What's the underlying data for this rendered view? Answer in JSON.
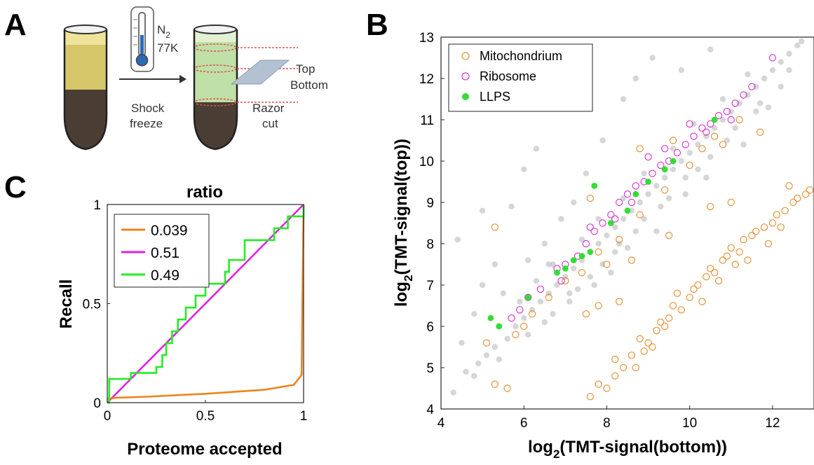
{
  "panel_labels": {
    "a": "A",
    "b": "B",
    "c": "C"
  },
  "schematic": {
    "gas": "N",
    "gas_sub": "2",
    "temp": "77K",
    "step1_line1": "Shock",
    "step1_line2": "freeze",
    "step2_line1": "Razor",
    "step2_line2": "cut",
    "label_top": "Top",
    "label_bottom": "Bottom"
  },
  "chart_data": [
    {
      "type": "line",
      "title": "ratio",
      "xlabel": "Proteome accepted",
      "ylabel": "Recall",
      "xlim": [
        0,
        1
      ],
      "ylim": [
        0,
        1
      ],
      "xticks": [
        "0",
        "0.5",
        "1"
      ],
      "yticks": [
        "0",
        "0.5",
        "1"
      ],
      "legend_position": "top-left",
      "series": [
        {
          "name": "0.039",
          "color": "#f0821e",
          "x": [
            0,
            0.05,
            0.2,
            0.5,
            0.8,
            0.95,
            0.99,
            0.995,
            1.0,
            1.0
          ],
          "y": [
            0.02,
            0.025,
            0.03,
            0.045,
            0.065,
            0.09,
            0.14,
            0.6,
            0.97,
            1.0
          ]
        },
        {
          "name": "0.51",
          "color": "#e020e0",
          "x": [
            0,
            1
          ],
          "y": [
            0,
            1
          ]
        },
        {
          "name": "0.49",
          "color": "#22ee22",
          "step": true,
          "x": [
            0,
            0.01,
            0.12,
            0.25,
            0.28,
            0.3,
            0.33,
            0.36,
            0.4,
            0.45,
            0.5,
            0.55,
            0.6,
            0.62,
            0.66,
            0.7,
            0.75,
            0.8,
            0.85,
            0.88,
            0.92,
            0.95,
            1.0
          ],
          "y": [
            0.0,
            0.12,
            0.15,
            0.18,
            0.24,
            0.3,
            0.36,
            0.42,
            0.48,
            0.54,
            0.6,
            0.6,
            0.66,
            0.72,
            0.72,
            0.82,
            0.82,
            0.82,
            0.88,
            0.88,
            0.94,
            0.94,
            1.0
          ]
        }
      ]
    },
    {
      "type": "scatter",
      "xlabel": "log",
      "xlabel_sub": "2",
      "xlabel_rest": "(TMT-signal(bottom))",
      "ylabel": "log",
      "ylabel_sub": "2",
      "ylabel_rest": "(TMT-signal(top))",
      "xlim": [
        4,
        13
      ],
      "ylim": [
        4,
        13
      ],
      "xticks": [
        "4",
        "6",
        "8",
        "10",
        "12"
      ],
      "yticks": [
        "4",
        "5",
        "6",
        "7",
        "8",
        "9",
        "10",
        "11",
        "12",
        "13"
      ],
      "legend_position": "top-left",
      "series": [
        {
          "name": "Mitochondrium",
          "marker": "open-circle",
          "color": "#e8913a",
          "points": [
            [
              5.3,
              4.6
            ],
            [
              5.6,
              4.5
            ],
            [
              7.6,
              4.3
            ],
            [
              7.8,
              4.6
            ],
            [
              8.0,
              4.5
            ],
            [
              8.2,
              4.8
            ],
            [
              8.4,
              5.0
            ],
            [
              8.6,
              5.3
            ],
            [
              8.7,
              5.0
            ],
            [
              8.9,
              5.4
            ],
            [
              9.0,
              5.6
            ],
            [
              9.2,
              5.9
            ],
            [
              9.3,
              6.1
            ],
            [
              9.5,
              6.2
            ],
            [
              9.6,
              6.5
            ],
            [
              9.8,
              6.4
            ],
            [
              10.0,
              6.7
            ],
            [
              10.1,
              6.9
            ],
            [
              10.2,
              7.0
            ],
            [
              10.4,
              7.2
            ],
            [
              10.5,
              7.4
            ],
            [
              10.6,
              7.3
            ],
            [
              10.8,
              7.6
            ],
            [
              10.9,
              7.7
            ],
            [
              11.0,
              7.9
            ],
            [
              11.2,
              7.8
            ],
            [
              11.3,
              8.1
            ],
            [
              11.5,
              8.2
            ],
            [
              11.6,
              8.3
            ],
            [
              11.8,
              8.4
            ],
            [
              12.0,
              8.5
            ],
            [
              12.1,
              8.7
            ],
            [
              12.3,
              8.8
            ],
            [
              12.5,
              9.0
            ],
            [
              12.6,
              9.1
            ],
            [
              12.8,
              9.2
            ],
            [
              12.9,
              9.3
            ],
            [
              8.2,
              5.2
            ],
            [
              8.8,
              5.7
            ],
            [
              9.1,
              5.5
            ],
            [
              9.4,
              6.0
            ],
            [
              9.7,
              6.8
            ],
            [
              10.3,
              6.6
            ],
            [
              10.7,
              7.1
            ],
            [
              11.1,
              7.5
            ],
            [
              11.4,
              7.6
            ],
            [
              11.9,
              8.0
            ],
            [
              12.2,
              8.4
            ],
            [
              5.8,
              5.8
            ],
            [
              6.2,
              6.3
            ],
            [
              6.6,
              6.7
            ],
            [
              7.0,
              7.1
            ],
            [
              7.4,
              7.3
            ],
            [
              7.8,
              7.8
            ],
            [
              8.3,
              8.1
            ],
            [
              8.8,
              8.7
            ],
            [
              9.4,
              9.3
            ],
            [
              10.0,
              9.9
            ],
            [
              10.6,
              10.6
            ],
            [
              11.2,
              11.0
            ],
            [
              9.6,
              10.5
            ],
            [
              10.3,
              10.3
            ],
            [
              7.6,
              9.1
            ],
            [
              5.3,
              8.4
            ],
            [
              8.8,
              10.3
            ],
            [
              10.8,
              10.4
            ],
            [
              11.7,
              10.7
            ],
            [
              7.8,
              6.5
            ],
            [
              7.5,
              6.3
            ],
            [
              8.3,
              6.6
            ],
            [
              6.0,
              6.0
            ],
            [
              5.1,
              5.6
            ],
            [
              8.0,
              7.5
            ],
            [
              8.6,
              7.6
            ],
            [
              9.5,
              8.2
            ],
            [
              10.5,
              8.9
            ],
            [
              11.0,
              9.0
            ],
            [
              12.4,
              9.4
            ]
          ]
        },
        {
          "name": "Ribosome",
          "marker": "open-circle",
          "color": "#d83ad8",
          "points": [
            [
              5.7,
              6.2
            ],
            [
              5.9,
              6.4
            ],
            [
              6.1,
              6.7
            ],
            [
              6.4,
              6.9
            ],
            [
              6.8,
              7.4
            ],
            [
              7.0,
              7.5
            ],
            [
              7.3,
              7.7
            ],
            [
              7.5,
              8.0
            ],
            [
              7.7,
              8.3
            ],
            [
              7.9,
              8.5
            ],
            [
              8.1,
              8.7
            ],
            [
              8.3,
              9.0
            ],
            [
              8.5,
              9.2
            ],
            [
              8.7,
              9.4
            ],
            [
              8.9,
              9.5
            ],
            [
              9.1,
              9.7
            ],
            [
              9.3,
              9.9
            ],
            [
              9.5,
              10.0
            ],
            [
              9.7,
              10.2
            ],
            [
              9.9,
              10.4
            ],
            [
              10.1,
              10.6
            ],
            [
              10.3,
              10.8
            ],
            [
              10.5,
              10.9
            ],
            [
              10.7,
              11.1
            ],
            [
              10.9,
              11.2
            ],
            [
              11.1,
              11.4
            ],
            [
              11.3,
              11.6
            ],
            [
              11.5,
              11.8
            ],
            [
              12.0,
              12.5
            ],
            [
              9.0,
              10.1
            ],
            [
              9.4,
              10.3
            ],
            [
              10.0,
              10.9
            ],
            [
              10.4,
              10.7
            ],
            [
              11.0,
              11.0
            ],
            [
              8.6,
              9.0
            ],
            [
              8.2,
              8.6
            ],
            [
              7.6,
              8.4
            ],
            [
              6.9,
              7.1
            ]
          ]
        },
        {
          "name": "LLPS",
          "marker": "filled-circle",
          "color": "#33dd33",
          "points": [
            [
              5.2,
              6.2
            ],
            [
              5.4,
              6.0
            ],
            [
              6.1,
              6.7
            ],
            [
              6.8,
              7.3
            ],
            [
              7.0,
              7.4
            ],
            [
              7.2,
              7.6
            ],
            [
              7.4,
              7.7
            ],
            [
              7.6,
              7.8
            ],
            [
              7.7,
              9.4
            ],
            [
              8.1,
              8.5
            ],
            [
              8.5,
              8.8
            ],
            [
              8.7,
              9.2
            ],
            [
              9.0,
              9.5
            ],
            [
              9.4,
              9.8
            ],
            [
              9.6,
              10.0
            ],
            [
              10.6,
              11.0
            ]
          ]
        },
        {
          "name": "",
          "marker": "filled-circle",
          "color": "#b4b4b4",
          "points": [
            [
              4.3,
              4.4
            ],
            [
              4.6,
              4.9
            ],
            [
              4.9,
              5.1
            ],
            [
              5.1,
              5.3
            ],
            [
              5.3,
              5.5
            ],
            [
              5.6,
              5.7
            ],
            [
              5.8,
              6.0
            ],
            [
              6.0,
              6.2
            ],
            [
              6.2,
              6.4
            ],
            [
              6.4,
              6.6
            ],
            [
              6.6,
              6.8
            ],
            [
              6.8,
              7.0
            ],
            [
              7.0,
              7.2
            ],
            [
              7.2,
              7.4
            ],
            [
              7.4,
              7.6
            ],
            [
              7.6,
              7.8
            ],
            [
              7.8,
              8.0
            ],
            [
              8.0,
              8.2
            ],
            [
              8.2,
              8.4
            ],
            [
              8.4,
              8.6
            ],
            [
              8.6,
              8.8
            ],
            [
              8.8,
              9.0
            ],
            [
              9.0,
              9.2
            ],
            [
              9.2,
              9.4
            ],
            [
              9.4,
              9.6
            ],
            [
              9.6,
              9.8
            ],
            [
              9.8,
              10.0
            ],
            [
              10.0,
              10.2
            ],
            [
              10.2,
              10.4
            ],
            [
              10.4,
              10.6
            ],
            [
              10.6,
              10.8
            ],
            [
              10.8,
              11.0
            ],
            [
              11.0,
              11.2
            ],
            [
              11.2,
              11.4
            ],
            [
              11.4,
              11.6
            ],
            [
              11.6,
              11.8
            ],
            [
              11.8,
              12.0
            ],
            [
              12.0,
              12.2
            ],
            [
              12.2,
              12.4
            ],
            [
              12.4,
              12.6
            ],
            [
              12.6,
              12.8
            ],
            [
              4.5,
              5.6
            ],
            [
              4.8,
              6.3
            ],
            [
              5.0,
              7.0
            ],
            [
              5.5,
              6.8
            ],
            [
              5.7,
              8.9
            ],
            [
              6.0,
              9.8
            ],
            [
              6.3,
              10.3
            ],
            [
              6.5,
              8.0
            ],
            [
              6.9,
              8.6
            ],
            [
              7.2,
              9.0
            ],
            [
              7.5,
              9.7
            ],
            [
              7.9,
              10.5
            ],
            [
              8.4,
              11.5
            ],
            [
              8.7,
              12.0
            ],
            [
              9.1,
              12.5
            ],
            [
              9.8,
              12.2
            ],
            [
              10.5,
              12.7
            ],
            [
              5.3,
              7.5
            ],
            [
              4.4,
              8.1
            ],
            [
              5.0,
              8.8
            ],
            [
              6.1,
              7.6
            ],
            [
              6.6,
              7.5
            ],
            [
              7.1,
              6.6
            ],
            [
              7.7,
              7.0
            ],
            [
              8.1,
              7.3
            ],
            [
              8.5,
              7.9
            ],
            [
              9.2,
              8.3
            ],
            [
              9.9,
              9.2
            ],
            [
              10.4,
              9.6
            ],
            [
              11.3,
              10.4
            ],
            [
              11.9,
              11.3
            ],
            [
              12.4,
              12.2
            ],
            [
              12.7,
              12.9
            ],
            [
              4.8,
              4.8
            ],
            [
              5.4,
              5.2
            ],
            [
              6.1,
              5.8
            ],
            [
              6.7,
              6.3
            ],
            [
              7.3,
              6.9
            ],
            [
              7.9,
              7.5
            ],
            [
              8.3,
              8.0
            ],
            [
              8.9,
              8.6
            ],
            [
              9.5,
              9.1
            ],
            [
              10.2,
              9.8
            ],
            [
              10.9,
              10.5
            ],
            [
              11.6,
              11.2
            ],
            [
              12.2,
              11.8
            ],
            [
              5.9,
              6.6
            ],
            [
              6.3,
              7.1
            ],
            [
              6.7,
              7.5
            ],
            [
              7.4,
              8.1
            ],
            [
              7.8,
              8.6
            ],
            [
              8.4,
              9.1
            ],
            [
              8.9,
              9.7
            ],
            [
              9.6,
              10.3
            ],
            [
              10.1,
              10.9
            ],
            [
              10.8,
              11.5
            ],
            [
              11.4,
              12.1
            ],
            [
              6.5,
              6.1
            ],
            [
              7.1,
              6.8
            ],
            [
              7.6,
              7.2
            ],
            [
              8.2,
              7.8
            ],
            [
              8.7,
              8.3
            ],
            [
              9.3,
              8.9
            ],
            [
              9.9,
              9.6
            ],
            [
              10.5,
              10.1
            ],
            [
              11.1,
              10.8
            ],
            [
              11.7,
              11.4
            ]
          ]
        }
      ]
    }
  ]
}
